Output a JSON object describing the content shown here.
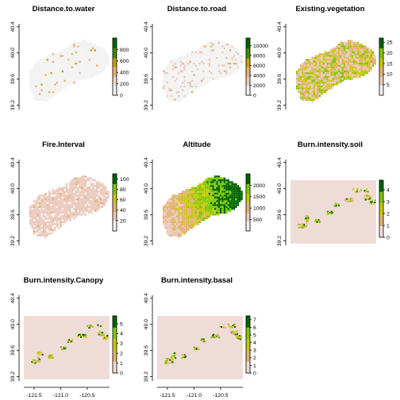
{
  "chart_data": [
    {
      "type": "heatmap",
      "title": "Distance.to.water",
      "xlim": [
        -121.65,
        -120.35
      ],
      "ylim": [
        39.15,
        40.45
      ],
      "xticks": [
        "-121.5",
        "-121.0",
        "-120.5"
      ],
      "yticks": [
        "39.2",
        "39.6",
        "40.0",
        "40.4"
      ],
      "legend": {
        "ticks": [
          0,
          200,
          400,
          600,
          800
        ],
        "min": 0,
        "max": 1000,
        "colors": [
          "#f2f2f2",
          "#edd6c8",
          "#e4b26e",
          "#c8a000",
          "#3c8a00",
          "#006400"
        ]
      },
      "extent": "irregular",
      "fill_style": "mostly-low"
    },
    {
      "type": "heatmap",
      "title": "Distance.to.road",
      "xlim": [
        -121.65,
        -120.35
      ],
      "ylim": [
        39.15,
        40.45
      ],
      "xticks": [
        "-121.5",
        "-121.0",
        "-120.5"
      ],
      "yticks": [
        "39.2",
        "39.6",
        "40.0",
        "40.4"
      ],
      "legend": {
        "ticks": [
          0,
          2000,
          4000,
          6000,
          8000,
          10000
        ],
        "min": 0,
        "max": 11500,
        "colors": [
          "#f2f2f2",
          "#ebc9bd",
          "#e4b26e",
          "#c8a000",
          "#3c8a00",
          "#006400"
        ]
      },
      "extent": "irregular",
      "fill_style": "low-with-pink"
    },
    {
      "type": "heatmap",
      "title": "Existing.vegetation",
      "xlim": [
        -121.65,
        -120.35
      ],
      "ylim": [
        39.15,
        40.45
      ],
      "xticks": [
        "-121.5",
        "-121.0",
        "-120.5"
      ],
      "yticks": [
        "39.2",
        "39.6",
        "40.0",
        "40.4"
      ],
      "legend": {
        "ticks": [
          5,
          10,
          15,
          20,
          25
        ],
        "min": 0,
        "max": 27,
        "colors": [
          "#f2f2f2",
          "#ebc9bd",
          "#e4b26e",
          "#c8c800",
          "#7cc800",
          "#006400"
        ]
      },
      "extent": "irregular",
      "fill_style": "mixed"
    },
    {
      "type": "heatmap",
      "title": "Fire.Interval",
      "xlim": [
        -121.65,
        -120.35
      ],
      "ylim": [
        39.15,
        40.45
      ],
      "xticks": [
        "-121.5",
        "-121.0",
        "-120.5"
      ],
      "yticks": [
        "39.2",
        "39.6",
        "40.0",
        "40.4"
      ],
      "legend": {
        "ticks": [
          20,
          40,
          60,
          80,
          100
        ],
        "min": 0,
        "max": 110,
        "colors": [
          "#f2f2f2",
          "#ebc9bd",
          "#e4b26e",
          "#c8c800",
          "#7cc800",
          "#006400"
        ]
      },
      "extent": "irregular",
      "fill_style": "pink"
    },
    {
      "type": "heatmap",
      "title": "Altitude",
      "xlim": [
        -121.65,
        -120.35
      ],
      "ylim": [
        39.15,
        40.45
      ],
      "xticks": [
        "-121.5",
        "-121.0",
        "-120.5"
      ],
      "yticks": [
        "39.2",
        "39.6",
        "40.0",
        "40.4"
      ],
      "legend": {
        "ticks": [
          500,
          1000,
          1500,
          2000
        ],
        "min": 0,
        "max": 2500,
        "colors": [
          "#f2f2f2",
          "#ebc9bd",
          "#e4b26e",
          "#c8c800",
          "#7cc800",
          "#006400"
        ]
      },
      "extent": "irregular",
      "fill_style": "gradient"
    },
    {
      "type": "heatmap",
      "title": "Burn.intensity.soil",
      "xlim": [
        -121.65,
        -120.35
      ],
      "ylim": [
        39.15,
        40.45
      ],
      "xticks": [
        "-121.5",
        "-121.0",
        "-120.5"
      ],
      "yticks": [
        "39.2",
        "39.6",
        "40.0",
        "40.4"
      ],
      "legend": {
        "ticks": [
          0,
          1,
          2,
          3,
          4
        ],
        "min": 0,
        "max": 4.8,
        "colors": [
          "#f0dcd6",
          "#e4b26e",
          "#c8c800",
          "#7cc800",
          "#006400"
        ]
      },
      "extent": "rectangle",
      "fill_style": "burn"
    },
    {
      "type": "heatmap",
      "title": "Burn.intensity.Canopy",
      "xlim": [
        -121.65,
        -120.35
      ],
      "ylim": [
        39.15,
        40.45
      ],
      "xticks": [
        "-121.5",
        "-121.0",
        "-120.5"
      ],
      "yticks": [
        "39.2",
        "39.6",
        "40.0",
        "40.4"
      ],
      "legend": {
        "ticks": [
          0,
          1,
          2,
          3,
          4,
          5
        ],
        "min": 0,
        "max": 5.8,
        "colors": [
          "#f0dcd6",
          "#e4b26e",
          "#c8c800",
          "#7cc800",
          "#006400"
        ]
      },
      "extent": "rectangle",
      "fill_style": "burn"
    },
    {
      "type": "heatmap",
      "title": "Burn.intensity.basal",
      "xlim": [
        -121.65,
        -120.35
      ],
      "ylim": [
        39.15,
        40.45
      ],
      "xticks": [
        "-121.5",
        "-121.0",
        "-120.5"
      ],
      "yticks": [
        "39.2",
        "39.6",
        "40.0",
        "40.4"
      ],
      "legend": {
        "ticks": [
          0,
          1,
          2,
          3,
          4,
          5,
          6,
          7
        ],
        "min": 0,
        "max": 7.5,
        "colors": [
          "#f0dcd6",
          "#e4b26e",
          "#c8c800",
          "#7cc800",
          "#006400"
        ]
      },
      "extent": "rectangle",
      "fill_style": "burn"
    }
  ]
}
